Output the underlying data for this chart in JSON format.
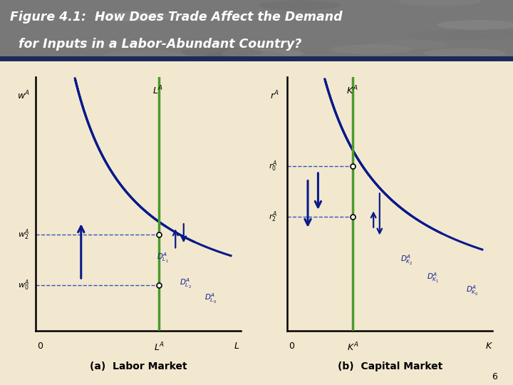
{
  "title_line1": "Figure 4.1:  How Does Trade Affect the Demand",
  "title_line2": "  for Inputs in a Labor-Abundant Country?",
  "bg_color": "#f2e8d0",
  "header_bg_top": "#888888",
  "header_bg_bot": "#1a2a5a",
  "curve_color": "#0a1a8a",
  "supply_line_color": "#4a9a2a",
  "dashed_color": "#3355bb",
  "panel_a_label": "(a)  Labor Market",
  "panel_b_label": "(b)  Capital Market",
  "page_num": "6",
  "fig_width": 7.2,
  "fig_height": 5.4
}
